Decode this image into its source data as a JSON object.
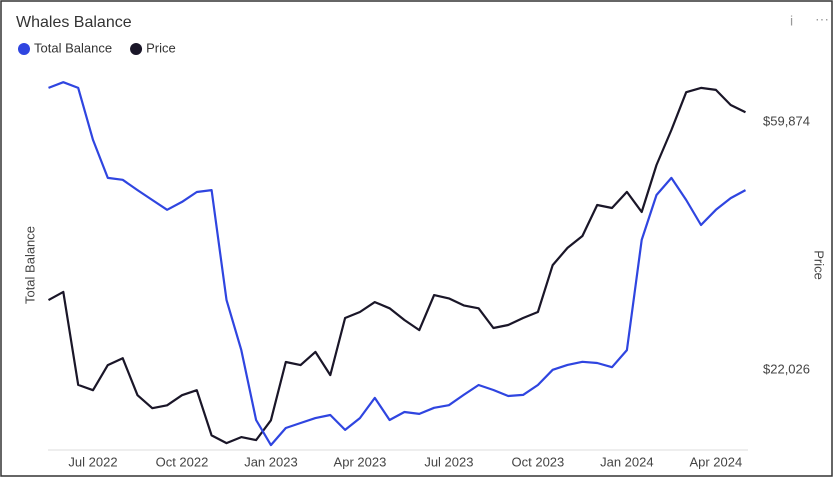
{
  "chart_data": {
    "type": "line",
    "title": "Whales Balance",
    "y_label": "Total Balance",
    "y2_label": "Price",
    "categories": [
      null,
      null,
      null,
      "Jul 2022",
      null,
      null,
      null,
      null,
      null,
      "Oct 2022",
      null,
      null,
      null,
      null,
      null,
      "Jan 2023",
      null,
      null,
      null,
      null,
      null,
      "Apr 2023",
      null,
      null,
      null,
      null,
      null,
      "Jul 2023",
      null,
      null,
      null,
      null,
      null,
      "Oct 2023",
      null,
      null,
      null,
      null,
      null,
      "Jan 2024",
      null,
      null,
      null,
      null,
      null,
      "Apr 2024",
      null,
      null
    ],
    "series": [
      {
        "name": "Total Balance",
        "color": "#2f45e0",
        "axis": "y",
        "values": [
          95.3,
          96.8,
          95.3,
          81.6,
          71.6,
          71.1,
          68.4,
          65.8,
          63.2,
          65.3,
          67.9,
          68.4,
          39.5,
          26.3,
          7.9,
          1.3,
          5.8,
          7.1,
          8.4,
          9.2,
          5.3,
          8.4,
          13.7,
          7.9,
          10.0,
          9.5,
          11.1,
          11.8,
          14.5,
          17.1,
          15.8,
          14.2,
          14.5,
          17.1,
          21.1,
          22.4,
          23.2,
          22.9,
          21.8,
          26.3,
          55.3,
          67.1,
          71.6,
          65.8,
          59.2,
          63.2,
          66.3,
          68.4
        ]
      },
      {
        "name": "Price",
        "color": "#1a1628",
        "axis": "y2",
        "values": [
          29200,
          30180,
          20740,
          20300,
          22470,
          23100,
          19900,
          18880,
          19100,
          19900,
          20300,
          16920,
          16400,
          16800,
          16600,
          17980,
          22750,
          22470,
          23700,
          21580,
          27170,
          27830,
          28970,
          28250,
          26950,
          25870,
          29800,
          29400,
          28580,
          28250,
          26090,
          26410,
          27170,
          27830,
          33630,
          36050,
          37830,
          42860,
          42350,
          45190,
          41670,
          50370,
          58000,
          67560,
          68740,
          68200,
          64170,
          62320
        ]
      }
    ],
    "ylim": [
      0,
      100
    ],
    "y2lim": [
      15950,
      73900
    ],
    "y2_log_scale": true,
    "y2ticks": [
      {
        "value": 59874,
        "label": "$59,874"
      },
      {
        "value": 22026,
        "label": "$22,026"
      }
    ]
  }
}
